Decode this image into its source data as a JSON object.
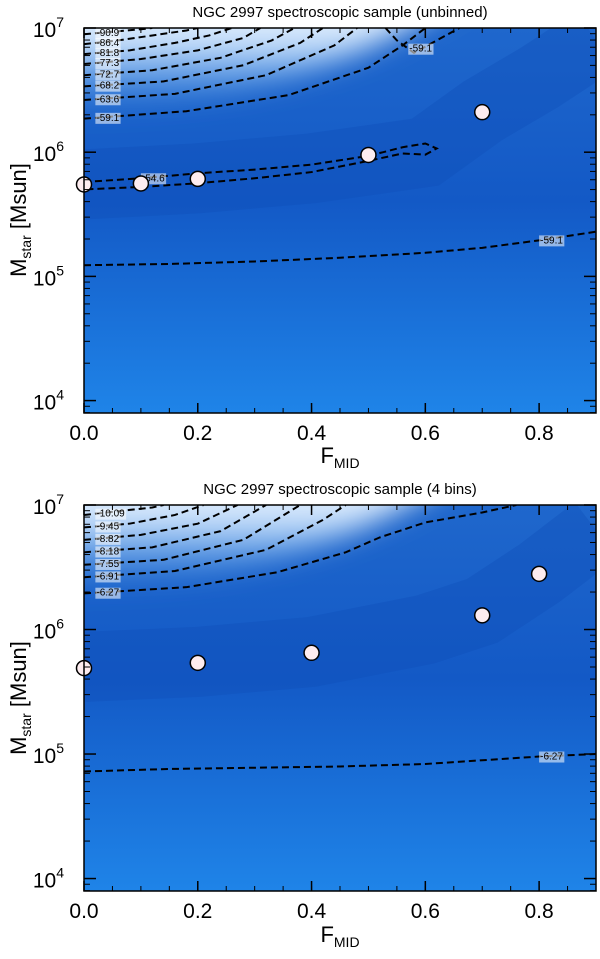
{
  "chart_data": [
    {
      "type": "heatmap",
      "title": "NGC 2997 spectroscopic sample (unbinned)",
      "xlabel": "F",
      "xlabel_sub": "MID",
      "ylabel": "M",
      "ylabel_sub": "star",
      "ylabel_unit": " [Msun]",
      "xlim": [
        0,
        0.9
      ],
      "ylim_log10": [
        3.9,
        7.0
      ],
      "x_ticks": [
        0.0,
        0.2,
        0.4,
        0.6,
        0.8
      ],
      "x_tick_labels": [
        "0.0",
        "0.2",
        "0.4",
        "0.6",
        "0.8"
      ],
      "y_ticks_log10": [
        4,
        5,
        6,
        7
      ],
      "y_tick_labels": [
        [
          "10",
          "4"
        ],
        [
          "10",
          "5"
        ],
        [
          "10",
          "6"
        ],
        [
          "10",
          "7"
        ]
      ],
      "points": [
        {
          "x": 0.0,
          "y": 550000
        },
        {
          "x": 0.1,
          "y": 560000
        },
        {
          "x": 0.2,
          "y": 610000
        },
        {
          "x": 0.5,
          "y": 950000
        },
        {
          "x": 0.7,
          "y": 2100000
        }
      ],
      "peak_curve": [
        [
          0.0,
          5.74
        ],
        [
          0.2,
          5.79
        ],
        [
          0.4,
          5.87
        ],
        [
          0.6,
          6.0
        ],
        [
          0.7,
          6.33
        ],
        [
          0.8,
          6.6
        ],
        [
          0.9,
          6.9
        ]
      ],
      "contours": [
        {
          "level": "-90.9",
          "label_x": 0.02,
          "points": [
            [
              0.0,
              6.95
            ],
            [
              0.05,
              6.97
            ],
            [
              0.1,
              6.99
            ],
            [
              0.12,
              7.0
            ]
          ]
        },
        {
          "level": "-86.4",
          "label_x": 0.02,
          "points": [
            [
              0.0,
              6.87
            ],
            [
              0.06,
              6.9
            ],
            [
              0.12,
              6.94
            ],
            [
              0.18,
              6.98
            ],
            [
              0.2,
              7.0
            ]
          ]
        },
        {
          "level": "-81.8",
          "label_x": 0.02,
          "points": [
            [
              0.0,
              6.79
            ],
            [
              0.08,
              6.82
            ],
            [
              0.16,
              6.88
            ],
            [
              0.22,
              6.94
            ],
            [
              0.26,
              7.0
            ]
          ]
        },
        {
          "level": "-77.3",
          "label_x": 0.02,
          "points": [
            [
              0.0,
              6.71
            ],
            [
              0.1,
              6.75
            ],
            [
              0.2,
              6.82
            ],
            [
              0.28,
              6.92
            ],
            [
              0.31,
              7.0
            ]
          ]
        },
        {
          "level": "-72.7",
          "label_x": 0.02,
          "points": [
            [
              0.0,
              6.62
            ],
            [
              0.12,
              6.66
            ],
            [
              0.24,
              6.76
            ],
            [
              0.33,
              6.9
            ],
            [
              0.37,
              7.0
            ]
          ]
        },
        {
          "level": "-68.2",
          "label_x": 0.02,
          "points": [
            [
              0.0,
              6.53
            ],
            [
              0.14,
              6.57
            ],
            [
              0.28,
              6.7
            ],
            [
              0.38,
              6.88
            ],
            [
              0.42,
              7.0
            ]
          ]
        },
        {
          "level": "-63.6",
          "label_x": 0.02,
          "points": [
            [
              0.0,
              6.42
            ],
            [
              0.16,
              6.47
            ],
            [
              0.32,
              6.62
            ],
            [
              0.44,
              6.86
            ],
            [
              0.48,
              7.0
            ]
          ]
        },
        {
          "level": "-59.1",
          "label_x": 0.02,
          "points": [
            [
              0.0,
              6.27
            ],
            [
              0.18,
              6.33
            ],
            [
              0.36,
              6.46
            ],
            [
              0.5,
              6.68
            ],
            [
              0.56,
              6.86
            ],
            [
              0.6,
              7.0
            ]
          ]
        },
        {
          "level": "-59.1",
          "label_x": 0.57,
          "points": [
            [
              0.53,
              7.0
            ],
            [
              0.55,
              6.9
            ],
            [
              0.58,
              6.8
            ],
            [
              0.62,
              6.9
            ],
            [
              0.66,
              7.0
            ]
          ]
        },
        {
          "level": "-54.6",
          "label_x": 0.1,
          "points": [
            [
              0.0,
              5.76
            ],
            [
              0.1,
              5.79
            ],
            [
              0.2,
              5.83
            ],
            [
              0.3,
              5.86
            ],
            [
              0.4,
              5.9
            ],
            [
              0.5,
              5.97
            ],
            [
              0.56,
              6.04
            ],
            [
              0.6,
              6.07
            ],
            [
              0.62,
              6.03
            ],
            [
              0.6,
              5.98
            ],
            [
              0.56,
              5.99
            ],
            [
              0.5,
              5.93
            ],
            [
              0.4,
              5.84
            ],
            [
              0.3,
              5.79
            ],
            [
              0.2,
              5.75
            ],
            [
              0.1,
              5.72
            ],
            [
              0.0,
              5.7
            ]
          ]
        },
        {
          "level": "-59.1",
          "label_x": 0.8,
          "points": [
            [
              0.0,
              5.09
            ],
            [
              0.15,
              5.1
            ],
            [
              0.3,
              5.12
            ],
            [
              0.45,
              5.15
            ],
            [
              0.6,
              5.19
            ],
            [
              0.7,
              5.23
            ],
            [
              0.8,
              5.29
            ],
            [
              0.9,
              5.36
            ]
          ]
        }
      ]
    },
    {
      "type": "heatmap",
      "title": "NGC 2997 spectroscopic sample (4 bins)",
      "xlabel": "F",
      "xlabel_sub": "MID",
      "ylabel": "M",
      "ylabel_sub": "star",
      "ylabel_unit": " [Msun]",
      "xlim": [
        0,
        0.9
      ],
      "ylim_log10": [
        3.9,
        7.0
      ],
      "x_ticks": [
        0.0,
        0.2,
        0.4,
        0.6,
        0.8
      ],
      "x_tick_labels": [
        "0.0",
        "0.2",
        "0.4",
        "0.6",
        "0.8"
      ],
      "y_ticks_log10": [
        4,
        5,
        6,
        7
      ],
      "y_tick_labels": [
        [
          "10",
          "4"
        ],
        [
          "10",
          "5"
        ],
        [
          "10",
          "6"
        ],
        [
          "10",
          "7"
        ]
      ],
      "points": [
        {
          "x": 0.0,
          "y": 490000
        },
        {
          "x": 0.2,
          "y": 540000
        },
        {
          "x": 0.4,
          "y": 650000
        },
        {
          "x": 0.7,
          "y": 1300000
        },
        {
          "x": 0.8,
          "y": 2800000
        }
      ],
      "peak_curve": [
        [
          0.0,
          5.7
        ],
        [
          0.2,
          5.74
        ],
        [
          0.4,
          5.82
        ],
        [
          0.6,
          6.0
        ],
        [
          0.7,
          6.15
        ],
        [
          0.8,
          6.45
        ],
        [
          0.9,
          6.8
        ]
      ],
      "contours": [
        {
          "level": "-10.09",
          "label_x": 0.02,
          "points": [
            [
              0.0,
              6.92
            ],
            [
              0.06,
              6.95
            ],
            [
              0.12,
              6.98
            ],
            [
              0.14,
              7.0
            ]
          ]
        },
        {
          "level": "-9.45",
          "label_x": 0.02,
          "points": [
            [
              0.0,
              6.82
            ],
            [
              0.08,
              6.85
            ],
            [
              0.16,
              6.92
            ],
            [
              0.21,
              7.0
            ]
          ]
        },
        {
          "level": "-8.82",
          "label_x": 0.02,
          "points": [
            [
              0.0,
              6.72
            ],
            [
              0.1,
              6.76
            ],
            [
              0.2,
              6.85
            ],
            [
              0.27,
              7.0
            ]
          ]
        },
        {
          "level": "-8.18",
          "label_x": 0.02,
          "points": [
            [
              0.0,
              6.62
            ],
            [
              0.12,
              6.66
            ],
            [
              0.24,
              6.79
            ],
            [
              0.32,
              7.0
            ]
          ]
        },
        {
          "level": "-7.55",
          "label_x": 0.02,
          "points": [
            [
              0.0,
              6.52
            ],
            [
              0.14,
              6.56
            ],
            [
              0.28,
              6.72
            ],
            [
              0.38,
              7.0
            ]
          ]
        },
        {
          "level": "-6.91",
          "label_x": 0.02,
          "points": [
            [
              0.0,
              6.42
            ],
            [
              0.16,
              6.47
            ],
            [
              0.32,
              6.64
            ],
            [
              0.42,
              6.88
            ],
            [
              0.46,
              7.0
            ]
          ]
        },
        {
          "level": "-6.27",
          "label_x": 0.02,
          "points": [
            [
              0.0,
              6.29
            ],
            [
              0.18,
              6.34
            ],
            [
              0.34,
              6.46
            ],
            [
              0.46,
              6.62
            ],
            [
              0.52,
              6.74
            ],
            [
              0.6,
              6.86
            ],
            [
              0.7,
              6.94
            ],
            [
              0.76,
              7.0
            ]
          ]
        },
        {
          "level": "-6.27",
          "label_x": 0.8,
          "points": [
            [
              0.0,
              4.86
            ],
            [
              0.15,
              4.88
            ],
            [
              0.3,
              4.89
            ],
            [
              0.45,
              4.9
            ],
            [
              0.6,
              4.92
            ],
            [
              0.7,
              4.95
            ],
            [
              0.8,
              4.98
            ],
            [
              0.9,
              5.0
            ]
          ]
        }
      ]
    }
  ]
}
